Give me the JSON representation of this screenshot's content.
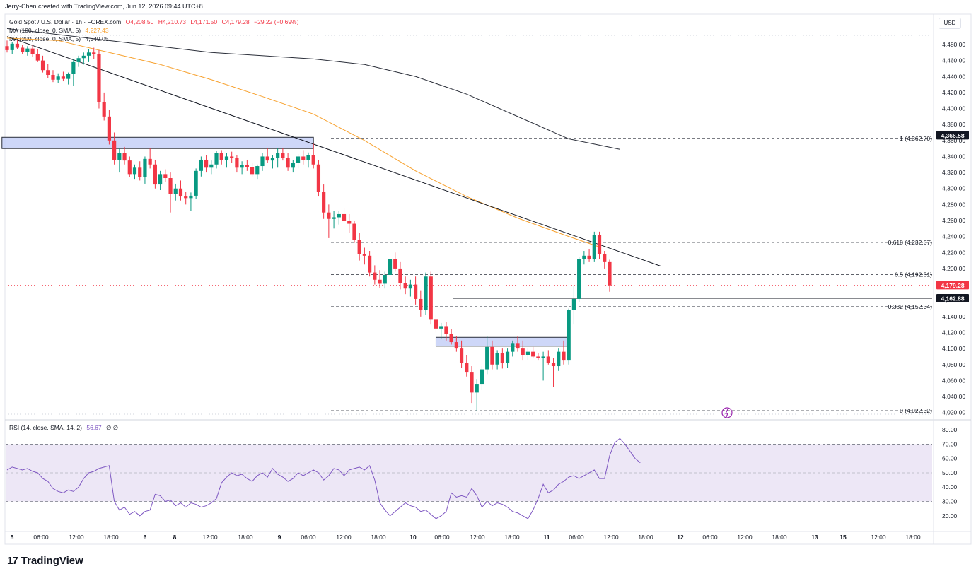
{
  "header": {
    "created_by": "Jerry-Chen created with TradingView.com, Jun 12, 2026 09:44 UTC+8"
  },
  "legend": {
    "symbol": "Gold Spot / U.S. Dollar · 1h · FOREX.com",
    "ohlc": {
      "o": "O4,208.50",
      "h": "H4,210.73",
      "l": "L4,171.50",
      "c": "C4,179.28",
      "chg": "−29.22 (−0.69%)"
    },
    "ma100_label": "MA (100, close, 0, SMA, 5)",
    "ma100_value": "4,227.43",
    "ma200_label": "MA (200, close, 0, SMA, 5)",
    "ma200_value": "4,349.05",
    "rsi_label": "RSI (14, close, SMA, 14, 2)",
    "rsi_value": "56.67",
    "rsi_extra": "∅ ∅"
  },
  "currency_button": "USD",
  "brand": {
    "mark": "17",
    "name": "TradingView"
  },
  "colors": {
    "up": "#089981",
    "down": "#f23645",
    "ma100": "#f7a12e",
    "ma200": "#2a2e39",
    "rsi": "#7e57c2",
    "rsi_band": "#ede7f6",
    "zone": "#c5d0f7",
    "zone_border": "#2a2e39"
  },
  "chart_data": [
    {
      "type": "candlestick",
      "title": "Gold Spot / U.S. Dollar · 1h · FOREX.com",
      "ylim": [
        4010,
        4495
      ],
      "y_ticks": [
        4020,
        4040,
        4060,
        4080,
        4100,
        4120,
        4140,
        4160,
        4180,
        4200,
        4220,
        4240,
        4260,
        4280,
        4300,
        4320,
        4340,
        4360,
        4380,
        4400,
        4420,
        4440,
        4460,
        4480
      ],
      "x_ticks": [
        "5",
        "06:00",
        "12:00",
        "18:00",
        "6",
        "8",
        "12:00",
        "18:00",
        "9",
        "06:00",
        "12:00",
        "18:00",
        "10",
        "06:00",
        "12:00",
        "18:00",
        "11",
        "06:00",
        "12:00",
        "18:00",
        "12",
        "06:00",
        "12:00",
        "18:00",
        "13",
        "15",
        "12:00",
        "18:00"
      ],
      "candles": [
        [
          4478,
          4485,
          4470,
          4473
        ],
        [
          4473,
          4483,
          4468,
          4481
        ],
        [
          4481,
          4486,
          4474,
          4476
        ],
        [
          4476,
          4480,
          4468,
          4471
        ],
        [
          4471,
          4478,
          4466,
          4475
        ],
        [
          4475,
          4480,
          4465,
          4468
        ],
        [
          4468,
          4474,
          4458,
          4460
        ],
        [
          4460,
          4466,
          4445,
          4448
        ],
        [
          4448,
          4456,
          4438,
          4442
        ],
        [
          4442,
          4448,
          4433,
          4436
        ],
        [
          4436,
          4444,
          4432,
          4440
        ],
        [
          4440,
          4446,
          4434,
          4437
        ],
        [
          4437,
          4445,
          4430,
          4443
        ],
        [
          4443,
          4462,
          4428,
          4458
        ],
        [
          4458,
          4466,
          4452,
          4463
        ],
        [
          4463,
          4470,
          4455,
          4466
        ],
        [
          4466,
          4474,
          4458,
          4470
        ],
        [
          4470,
          4476,
          4462,
          4468
        ],
        [
          4468,
          4473,
          4400,
          4408
        ],
        [
          4408,
          4420,
          4385,
          4390
        ],
        [
          4390,
          4398,
          4355,
          4360
        ],
        [
          4360,
          4370,
          4330,
          4336
        ],
        [
          4336,
          4350,
          4320,
          4344
        ],
        [
          4344,
          4352,
          4330,
          4335
        ],
        [
          4335,
          4340,
          4314,
          4318
        ],
        [
          4318,
          4330,
          4312,
          4326
        ],
        [
          4326,
          4334,
          4310,
          4314
        ],
        [
          4314,
          4340,
          4306,
          4337
        ],
        [
          4337,
          4350,
          4325,
          4330
        ],
        [
          4330,
          4336,
          4300,
          4305
        ],
        [
          4305,
          4322,
          4298,
          4318
        ],
        [
          4318,
          4324,
          4308,
          4313
        ],
        [
          4313,
          4320,
          4270,
          4293
        ],
        [
          4293,
          4306,
          4285,
          4300
        ],
        [
          4300,
          4310,
          4285,
          4290
        ],
        [
          4290,
          4296,
          4280,
          4288
        ],
        [
          4288,
          4295,
          4272,
          4291
        ],
        [
          4291,
          4325,
          4287,
          4322
        ],
        [
          4322,
          4340,
          4315,
          4336
        ],
        [
          4336,
          4342,
          4320,
          4326
        ],
        [
          4326,
          4335,
          4318,
          4330
        ],
        [
          4330,
          4347,
          4325,
          4344
        ],
        [
          4344,
          4348,
          4330,
          4336
        ],
        [
          4336,
          4344,
          4326,
          4340
        ],
        [
          4340,
          4346,
          4332,
          4338
        ],
        [
          4338,
          4342,
          4320,
          4326
        ],
        [
          4326,
          4334,
          4318,
          4329
        ],
        [
          4329,
          4336,
          4322,
          4327
        ],
        [
          4327,
          4332,
          4315,
          4318
        ],
        [
          4318,
          4330,
          4312,
          4328
        ],
        [
          4328,
          4344,
          4322,
          4340
        ],
        [
          4340,
          4350,
          4332,
          4335
        ],
        [
          4335,
          4342,
          4325,
          4338
        ],
        [
          4338,
          4350,
          4326,
          4344
        ],
        [
          4344,
          4350,
          4335,
          4338
        ],
        [
          4338,
          4344,
          4322,
          4326
        ],
        [
          4326,
          4336,
          4320,
          4332
        ],
        [
          4332,
          4343,
          4325,
          4340
        ],
        [
          4340,
          4348,
          4330,
          4336
        ],
        [
          4336,
          4345,
          4326,
          4342
        ],
        [
          4342,
          4356,
          4325,
          4330
        ],
        [
          4330,
          4336,
          4290,
          4296
        ],
        [
          4296,
          4305,
          4262,
          4270
        ],
        [
          4270,
          4280,
          4238,
          4262
        ],
        [
          4262,
          4272,
          4250,
          4264
        ],
        [
          4264,
          4272,
          4255,
          4268
        ],
        [
          4268,
          4276,
          4258,
          4260
        ],
        [
          4260,
          4268,
          4245,
          4256
        ],
        [
          4256,
          4260,
          4232,
          4236
        ],
        [
          4236,
          4245,
          4210,
          4218
        ],
        [
          4218,
          4226,
          4205,
          4216
        ],
        [
          4216,
          4222,
          4190,
          4195
        ],
        [
          4195,
          4204,
          4180,
          4186
        ],
        [
          4186,
          4198,
          4176,
          4181
        ],
        [
          4181,
          4196,
          4175,
          4192
        ],
        [
          4192,
          4215,
          4185,
          4212
        ],
        [
          4212,
          4220,
          4196,
          4200
        ],
        [
          4200,
          4208,
          4174,
          4182
        ],
        [
          4182,
          4190,
          4168,
          4175
        ],
        [
          4175,
          4186,
          4165,
          4180
        ],
        [
          4180,
          4190,
          4155,
          4162
        ],
        [
          4162,
          4172,
          4140,
          4148
        ],
        [
          4148,
          4195,
          4142,
          4190
        ],
        [
          4190,
          4196,
          4130,
          4136
        ],
        [
          4136,
          4142,
          4120,
          4125
        ],
        [
          4125,
          4132,
          4112,
          4128
        ],
        [
          4128,
          4133,
          4110,
          4118
        ],
        [
          4118,
          4124,
          4105,
          4108
        ],
        [
          4108,
          4116,
          4096,
          4100
        ],
        [
          4100,
          4110,
          4076,
          4082
        ],
        [
          4082,
          4092,
          4065,
          4070
        ],
        [
          4070,
          4078,
          4032,
          4045
        ],
        [
          4045,
          4062,
          4022,
          4055
        ],
        [
          4055,
          4078,
          4048,
          4074
        ],
        [
          4074,
          4116,
          4068,
          4102
        ],
        [
          4102,
          4110,
          4074,
          4080
        ],
        [
          4080,
          4098,
          4074,
          4094
        ],
        [
          4094,
          4100,
          4075,
          4082
        ],
        [
          4082,
          4100,
          4076,
          4096
        ],
        [
          4096,
          4110,
          4090,
          4106
        ],
        [
          4106,
          4115,
          4096,
          4100
        ],
        [
          4100,
          4110,
          4085,
          4092
        ],
        [
          4092,
          4100,
          4086,
          4096
        ],
        [
          4096,
          4102,
          4088,
          4090
        ],
        [
          4090,
          4094,
          4085,
          4088
        ],
        [
          4088,
          4096,
          4060,
          4090
        ],
        [
          4090,
          4098,
          4080,
          4082
        ],
        [
          4082,
          4088,
          4052,
          4078
        ],
        [
          4078,
          4100,
          4072,
          4096
        ],
        [
          4096,
          4110,
          4080,
          4085
        ],
        [
          4085,
          4150,
          4080,
          4148
        ],
        [
          4148,
          4178,
          4130,
          4162
        ],
        [
          4162,
          4215,
          4158,
          4212
        ],
        [
          4212,
          4222,
          4205,
          4216
        ],
        [
          4216,
          4224,
          4208,
          4212
        ],
        [
          4212,
          4246,
          4208,
          4242
        ],
        [
          4242,
          4246,
          4212,
          4218
        ],
        [
          4218,
          4222,
          4200,
          4208
        ],
        [
          4208,
          4211,
          4171,
          4179
        ]
      ],
      "ma100": [
        [
          0,
          4488
        ],
        [
          10,
          4485
        ],
        [
          20,
          4470
        ],
        [
          30,
          4455
        ],
        [
          40,
          4436
        ],
        [
          50,
          4415
        ],
        [
          60,
          4393
        ],
        [
          70,
          4360
        ],
        [
          80,
          4322
        ],
        [
          90,
          4290
        ],
        [
          100,
          4263
        ],
        [
          110,
          4240
        ],
        [
          116,
          4227
        ]
      ],
      "ma200": [
        [
          0,
          4500
        ],
        [
          20,
          4485
        ],
        [
          40,
          4470
        ],
        [
          60,
          4462
        ],
        [
          70,
          4455
        ],
        [
          80,
          4440
        ],
        [
          90,
          4418
        ],
        [
          100,
          4390
        ],
        [
          110,
          4362
        ],
        [
          120,
          4349
        ]
      ],
      "trendline": [
        [
          0,
          4490
        ],
        [
          128,
          4203
        ]
      ],
      "horizontal_levels": [
        4162.88
      ],
      "fib_levels": [
        {
          "label": "1 (4,362.70)",
          "value": 4362.7
        },
        {
          "label": "0.618 (4,232.67)",
          "value": 4232.67
        },
        {
          "label": "0.5 (4,192.51)",
          "value": 4192.51
        },
        {
          "label": "0.382 (4,152.34)",
          "value": 4152.34
        },
        {
          "label": "0 (4,022.32)",
          "value": 4022.32
        }
      ],
      "zones": [
        {
          "x0": -1,
          "x1": 60,
          "y0": 4357,
          "y1": 4364
        },
        {
          "x0": 84,
          "x1": 110,
          "y0": 4110,
          "y1": 4114
        }
      ],
      "price_labels": [
        {
          "value": 4366.58,
          "text": "4,366.58",
          "style": "dark"
        },
        {
          "value": 4179.28,
          "text": "4,179.28",
          "style": "red"
        },
        {
          "value": 4162.88,
          "text": "4,162.88",
          "style": "dark"
        }
      ]
    },
    {
      "type": "line",
      "title": "RSI (14, close, SMA, 14, 2)",
      "ylim": [
        12,
        86
      ],
      "y_ticks": [
        20,
        30,
        40,
        50,
        60,
        70,
        80
      ],
      "band": [
        30,
        70
      ],
      "midline": 50,
      "values": [
        52,
        54,
        53,
        52,
        53,
        51,
        50,
        46,
        44,
        39,
        37,
        36,
        38,
        37,
        40,
        46,
        50,
        51,
        53,
        54,
        55,
        30,
        24,
        26,
        21,
        23,
        20,
        23,
        24,
        35,
        34,
        30,
        31,
        27,
        29,
        26,
        29,
        28,
        26,
        27,
        29,
        32,
        43,
        47,
        50,
        48,
        49,
        46,
        44,
        48,
        50,
        47,
        53,
        49,
        47,
        44,
        46,
        50,
        48,
        50,
        52,
        50,
        45,
        48,
        53,
        52,
        48,
        52,
        53,
        54,
        52,
        55,
        45,
        29,
        24,
        20,
        23,
        26,
        29,
        27,
        26,
        23,
        24,
        21,
        18,
        20,
        23,
        36,
        33,
        34,
        33,
        39,
        34,
        26,
        30,
        27,
        29,
        28,
        26,
        23,
        22,
        20,
        18,
        24,
        32,
        42,
        36,
        38,
        42,
        44,
        47,
        48,
        46,
        48,
        50,
        52,
        46,
        46,
        62,
        71,
        74,
        70,
        65,
        60,
        57
      ]
    }
  ]
}
